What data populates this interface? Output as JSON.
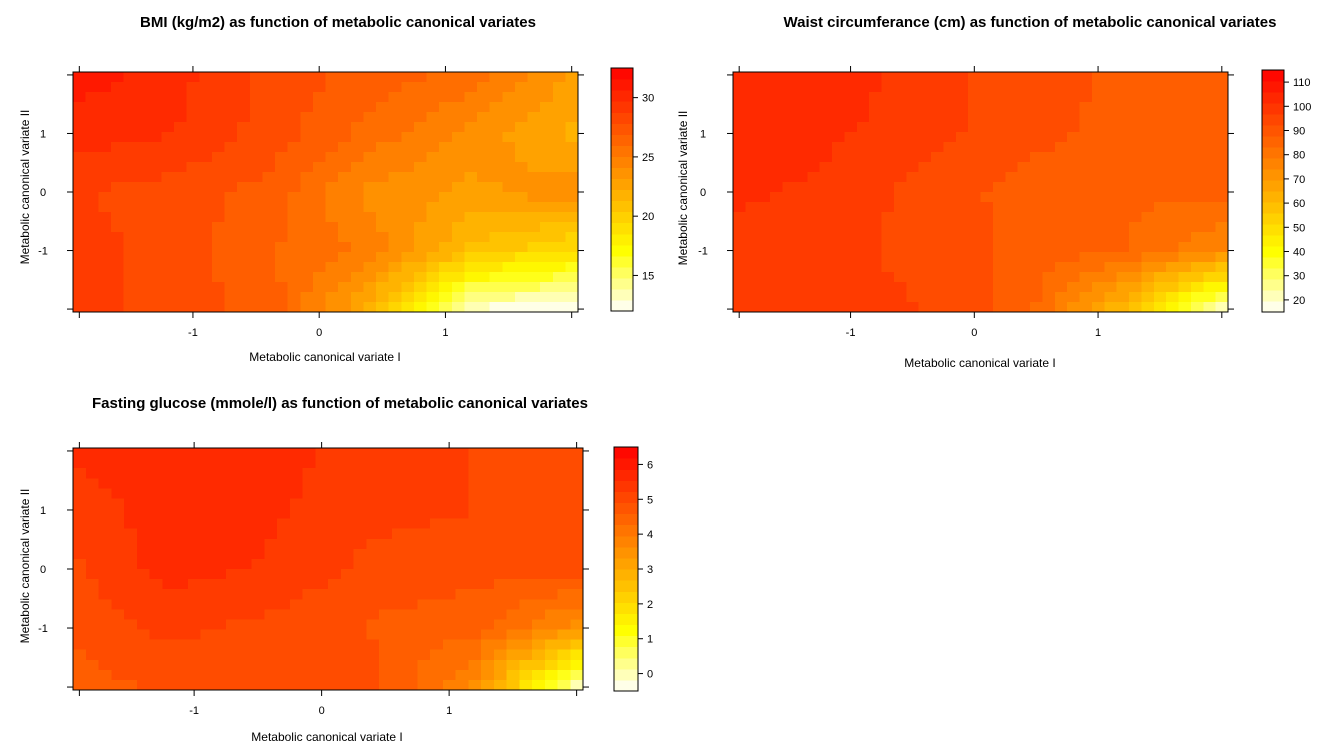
{
  "chart_data": [
    {
      "type": "heatmap",
      "title": "BMI (kg/m2) as function of metabolic canonical variates",
      "xlabel": "Metabolic canonical variate I",
      "ylabel": "Metabolic canonical variate II",
      "xlim": [
        -1.95,
        2.05
      ],
      "ylim": [
        -2.05,
        2.05
      ],
      "x_ticks": [
        -1,
        0,
        1
      ],
      "y_ticks": [
        -1,
        0,
        1
      ],
      "colorbar": {
        "min": 12,
        "max": 32.5,
        "ticks": [
          15,
          20,
          25,
          30
        ]
      },
      "grid": false,
      "legend": "right",
      "surface": {
        "x": [
          -2,
          -1.2,
          -0.4,
          0.4,
          1.2,
          2
        ],
        "y": [
          -2,
          -1,
          0,
          1,
          2
        ],
        "z": [
          [
            29,
            28,
            27,
            22,
            13,
            12
          ],
          [
            29,
            28,
            26.5,
            25,
            21,
            19
          ],
          [
            28.5,
            28,
            27,
            24,
            23,
            24
          ],
          [
            30,
            29.5,
            28,
            26,
            24,
            22
          ],
          [
            31,
            30,
            28,
            27,
            26,
            23
          ]
        ]
      }
    },
    {
      "type": "heatmap",
      "title": "Waist circumferance (cm) as function of metabolic canonical variates",
      "xlabel": "Metabolic canonical variate I",
      "ylabel": "Metabolic canonical variate II",
      "xlim": [
        -1.95,
        2.05
      ],
      "ylim": [
        -2.05,
        2.05
      ],
      "x_ticks": [
        -1,
        0,
        1
      ],
      "y_ticks": [
        -1,
        0,
        1
      ],
      "colorbar": {
        "min": 15,
        "max": 115,
        "ticks": [
          20,
          30,
          40,
          50,
          60,
          70,
          80,
          90,
          100,
          110
        ]
      },
      "grid": false,
      "legend": "right",
      "surface": {
        "x": [
          -2,
          -1.2,
          -0.4,
          0.4,
          1.2,
          2
        ],
        "y": [
          -2,
          -1,
          0,
          1,
          2
        ],
        "z": [
          [
            100,
            98,
            95,
            88,
            60,
            20
          ],
          [
            99,
            97,
            93,
            89,
            85,
            75
          ],
          [
            101,
            99,
            93,
            88,
            86,
            86
          ],
          [
            103,
            101,
            97,
            92,
            88,
            86
          ],
          [
            105,
            104,
            97,
            93,
            89,
            87
          ]
        ]
      }
    },
    {
      "type": "heatmap",
      "title": "Fasting glucose (mmole/l) as function of metabolic canonical variates",
      "xlabel": "Metabolic canonical variate I",
      "ylabel": "Metabolic canonical variate II",
      "xlim": [
        -1.95,
        2.05
      ],
      "ylim": [
        -2.05,
        2.05
      ],
      "x_ticks": [
        -1,
        0,
        1
      ],
      "y_ticks": [
        -1,
        0,
        1
      ],
      "colorbar": {
        "min": -0.5,
        "max": 6.5,
        "ticks": [
          0,
          1,
          2,
          3,
          4,
          5,
          6
        ]
      },
      "grid": false,
      "legend": "right",
      "surface": {
        "x": [
          -2,
          -1.2,
          -0.4,
          0.4,
          1.2,
          2
        ],
        "y": [
          -2,
          -1,
          0,
          1,
          2
        ],
        "z": [
          [
            4.6,
            4.8,
            5.0,
            4.9,
            3.6,
            0.0
          ],
          [
            4.8,
            5.2,
            5.0,
            4.7,
            4.5,
            3.5
          ],
          [
            5.0,
            5.6,
            5.4,
            5.0,
            4.9,
            4.9
          ],
          [
            5.1,
            5.7,
            5.5,
            5.2,
            5.1,
            5.0
          ],
          [
            5.5,
            5.8,
            5.6,
            5.3,
            5.1,
            4.9
          ]
        ]
      }
    }
  ]
}
